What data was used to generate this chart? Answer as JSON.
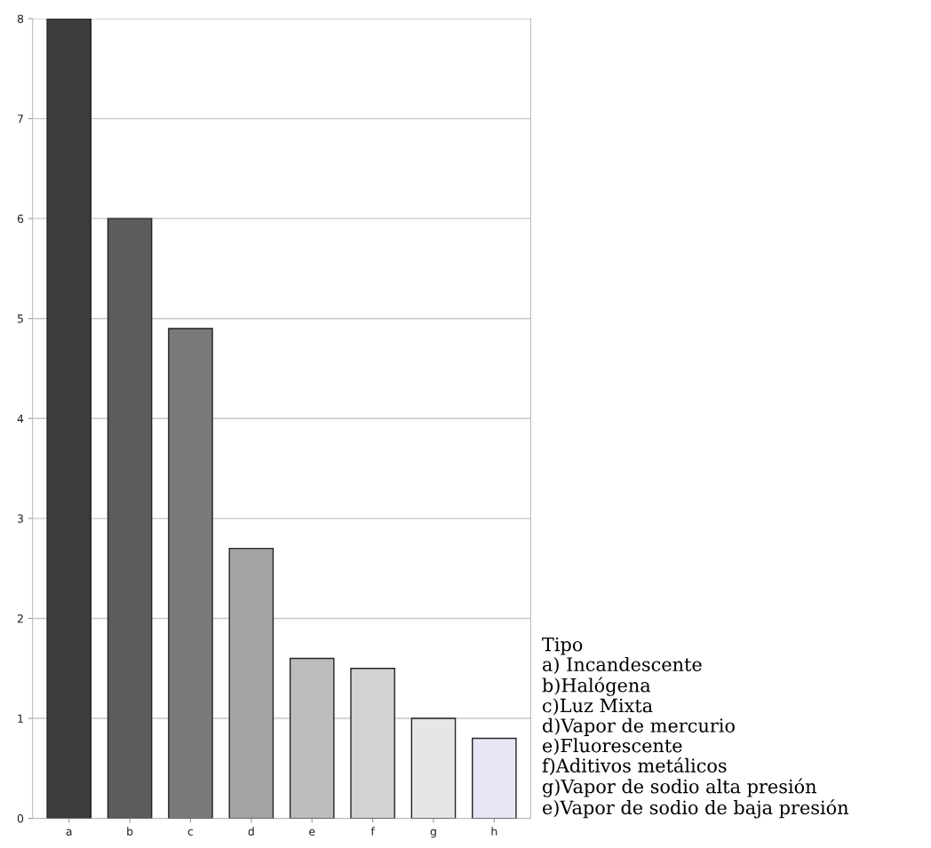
{
  "chart_data": {
    "type": "bar",
    "categories": [
      "a",
      "b",
      "c",
      "d",
      "e",
      "f",
      "g",
      "h"
    ],
    "values": [
      8,
      6,
      4.9,
      2.7,
      1.6,
      1.5,
      1.0,
      0.8
    ],
    "colors": [
      "#3c3c3c",
      "#5c5c5c",
      "#7a7a7a",
      "#a4a4a4",
      "#bcbcbc",
      "#d2d2d2",
      "#e6e6e6",
      "#e8e6f4"
    ],
    "ylim": [
      0,
      8
    ],
    "yticks": [
      0,
      1,
      2,
      3,
      4,
      5,
      6,
      7,
      8
    ],
    "grid": "y",
    "annotations": [
      "Tipo",
      "a) Incandescente",
      "b)Halógena",
      "c)Luz Mixta",
      "d)Vapor de mercurio",
      "e)Fluorescente",
      "f)Aditivos metálicos",
      "g)Vapor de sodio alta presión",
      "e)Vapor de sodio de baja presión"
    ]
  }
}
